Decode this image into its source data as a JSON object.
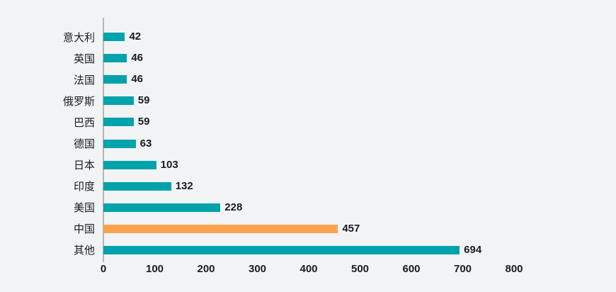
{
  "chart_data": {
    "type": "bar",
    "orientation": "horizontal",
    "title": "",
    "xlabel": "",
    "ylabel": "",
    "categories": [
      "意大利",
      "英国",
      "法国",
      "俄罗斯",
      "巴西",
      "德国",
      "日本",
      "印度",
      "美国",
      "中国",
      "其他"
    ],
    "values": [
      42,
      46,
      46,
      59,
      59,
      63,
      103,
      132,
      228,
      457,
      694
    ],
    "value_labels": [
      "42",
      "46",
      "46",
      "59",
      "59",
      "63",
      "103",
      "132",
      "228",
      "457",
      "694"
    ],
    "highlight_category": "中国",
    "x_ticks": [
      0,
      100,
      200,
      300,
      400,
      500,
      600,
      700,
      800
    ],
    "xlim": [
      0,
      800
    ],
    "grid": false,
    "legend": false,
    "colors": {
      "bar": "#00a3ac",
      "highlight": "#fba24f",
      "background": "#f2f3f4",
      "axis_line": "#b3b7bb",
      "text": "#1b1c1e"
    }
  }
}
